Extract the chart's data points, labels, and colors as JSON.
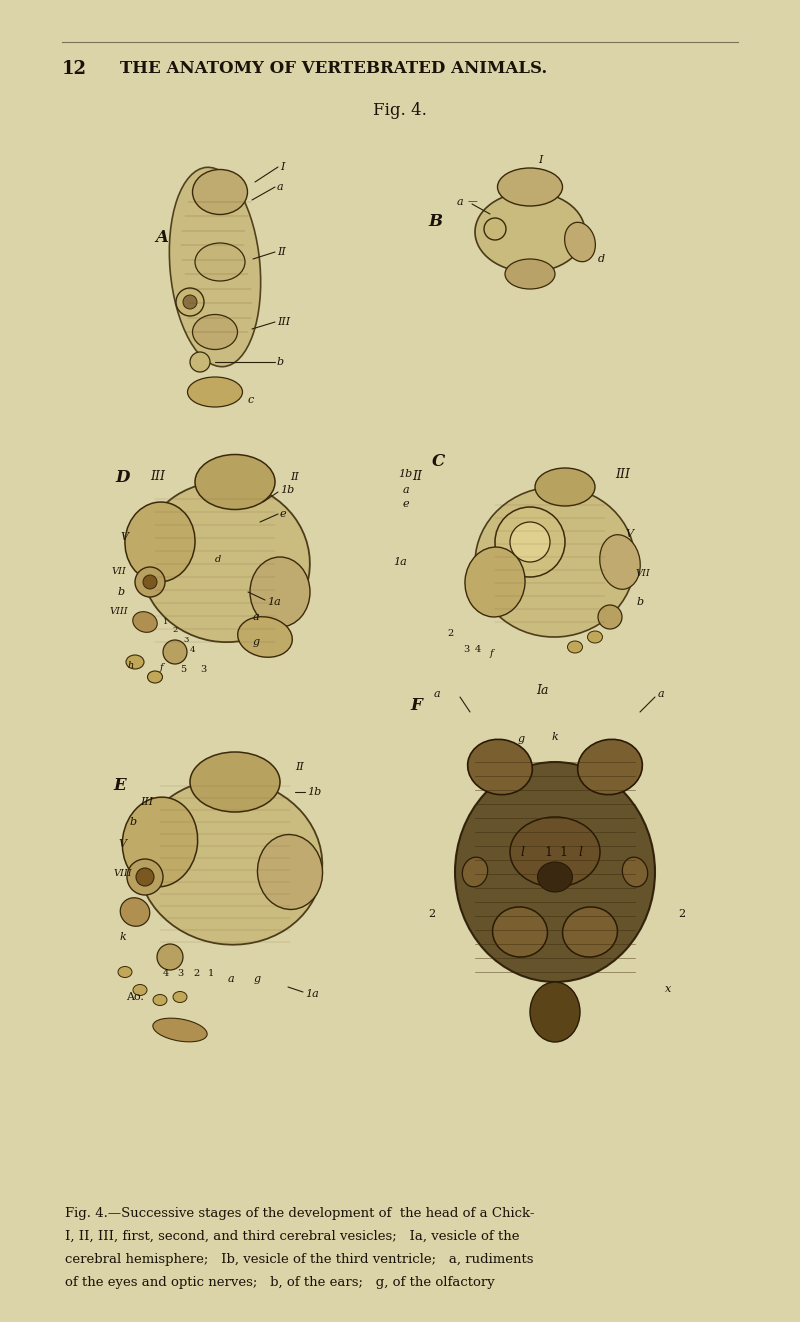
{
  "background_color": "#e8e0c0",
  "page_bg": "#ddd8b0",
  "header_number": "12",
  "header_title": "THE ANATOMY OF VERTEBRATED ANIMALS.",
  "fig_label": "Fig. 4.",
  "caption_line1": "Fig. 4.—Successive stages of the development of  the head of a Chick-",
  "caption_line2": "I, II, III, first, second, and third cerebral vesicles;   Ia, vesicle of the",
  "caption_line3": "cerebral hemisphere;   Ib, vesicle of the third ventricle;   a, rudiments",
  "caption_line4": "of the eyes and optic nerves;   b, of the ears;   g, of the olfactory",
  "bg_color": "#dbd4a8",
  "text_color": "#1a1208",
  "header_color": "#1a1208",
  "fig_title_color": "#1a1208"
}
